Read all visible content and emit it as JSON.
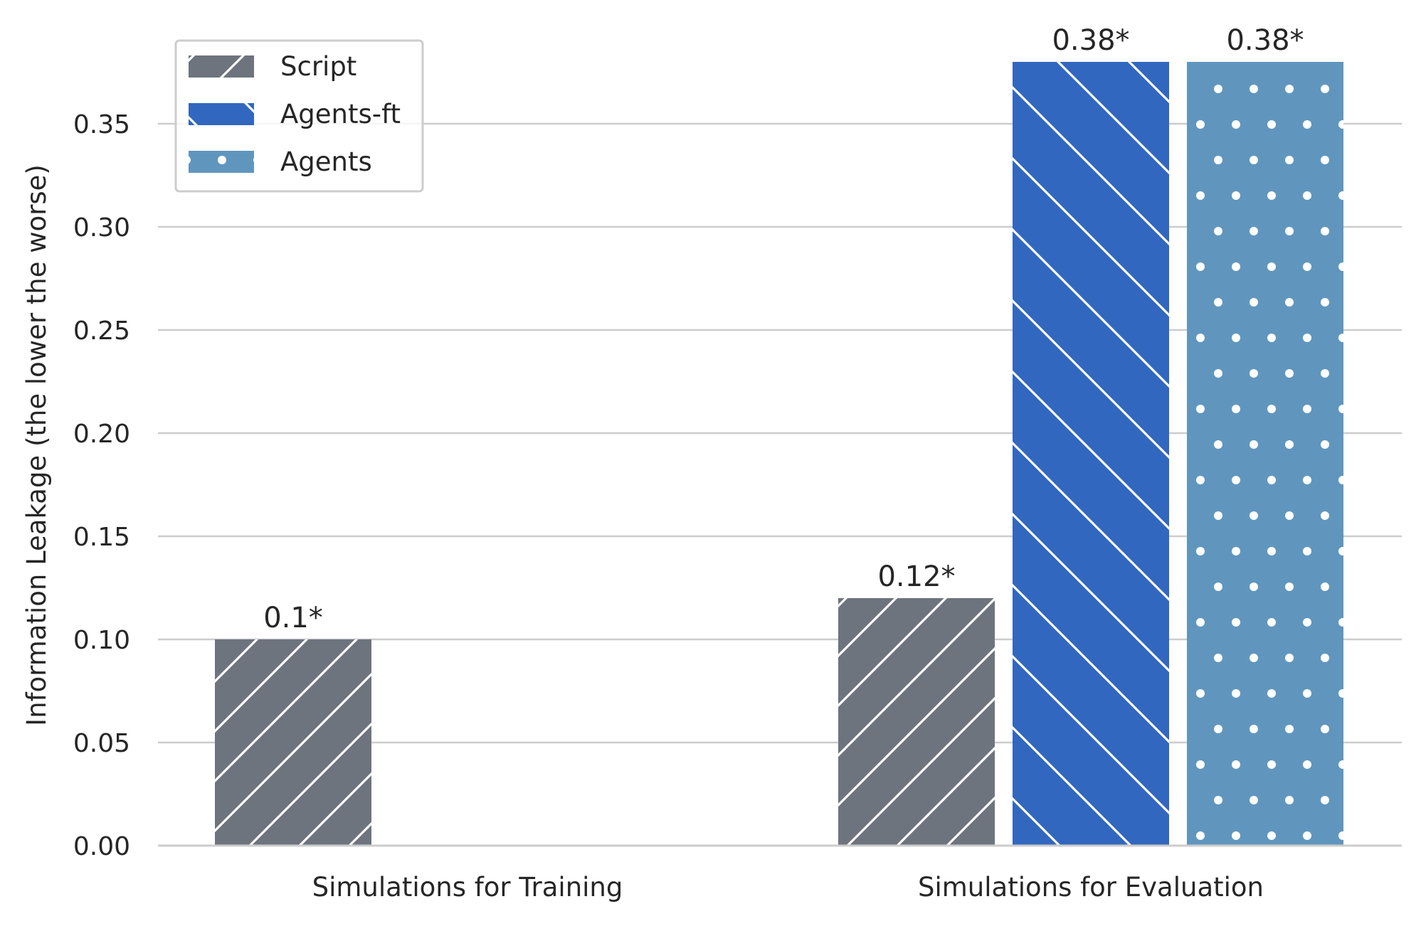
{
  "chart_data": {
    "type": "bar",
    "categories": [
      "Simulations for Training",
      "Simulations for Evaluation"
    ],
    "series": [
      {
        "name": "Script",
        "values": [
          0.1,
          0.12
        ],
        "labels": [
          "0.1*",
          "0.12*"
        ],
        "color": "#6d747e",
        "pattern": "diagonal-forward"
      },
      {
        "name": "Agents-ft",
        "values": [
          null,
          0.38
        ],
        "labels": [
          "",
          "0.38*"
        ],
        "color": "#3267bf",
        "pattern": "diagonal-backward"
      },
      {
        "name": "Agents",
        "values": [
          null,
          0.38
        ],
        "labels": [
          "",
          "0.38*"
        ],
        "color": "#6096be",
        "pattern": "dots"
      }
    ],
    "ylabel": "Information Leakage (the lower the worse)",
    "xlabel": "",
    "ylim": [
      0,
      0.38
    ],
    "yticks": [
      "0.00",
      "0.05",
      "0.10",
      "0.15",
      "0.20",
      "0.25",
      "0.30",
      "0.35"
    ],
    "grid": "horizontal",
    "legend_position": "top-left"
  }
}
